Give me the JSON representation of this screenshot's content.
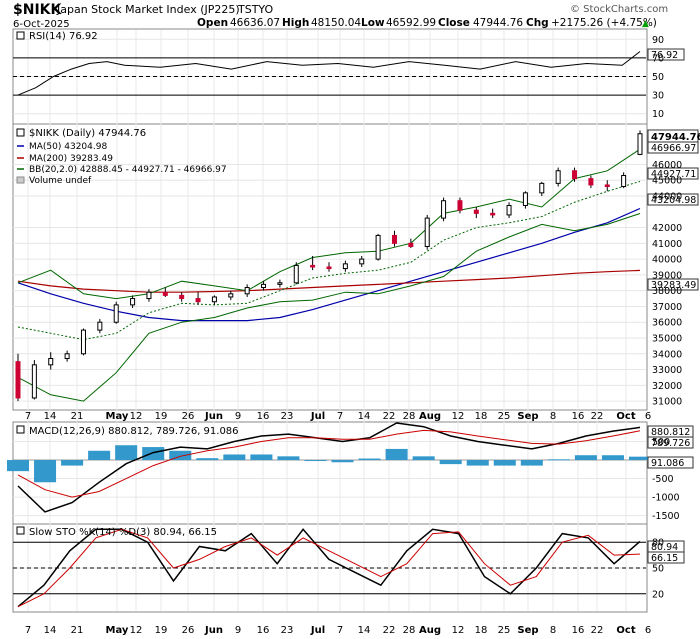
{
  "header": {
    "symbol": "$NIKK",
    "name": "Japan Stock Market Index (JP225)",
    "exchange": "TSTYO",
    "date": "6-Oct-2025",
    "open_label": "Open",
    "open": "46636.07",
    "high_label": "High",
    "high": "48150.04",
    "low_label": "Low",
    "low": "46592.99",
    "close_label": "Close",
    "close": "47944.76",
    "chg_label": "Chg",
    "chg": "+2175.26 (+4.75%)",
    "chg_arrow": "▲",
    "watermark": "© StockCharts.com"
  },
  "rsi_panel": {
    "legend": "RSI(14) 76.92",
    "ticks": [
      "90",
      "70",
      "50",
      "30",
      "10"
    ],
    "last_value": "76.92"
  },
  "price_panel": {
    "legend": [
      {
        "text": "$NIKK (Daily) 47944.76",
        "color": "#000000"
      },
      {
        "text": "MA(50) 43204.98",
        "color": "#0000aa"
      },
      {
        "text": "MA(200) 39283.49",
        "color": "#aa0000"
      },
      {
        "text": "BB(20,2.0) 42888.45 - 44927.71 - 46966.97",
        "color": "#006600"
      },
      {
        "text": "Volume undef",
        "color": "#555555"
      }
    ],
    "ticks": [
      "46000",
      "45000",
      "44000",
      "42000",
      "41000",
      "40000",
      "39000",
      "38000",
      "37000",
      "36000",
      "35000",
      "34000",
      "33000",
      "32000",
      "31000"
    ],
    "labels": [
      {
        "text": "47944.76",
        "bold": true
      },
      {
        "text": "46966.97",
        "bold": false
      },
      {
        "text": "44927.71",
        "bold": false
      },
      {
        "text": "43204.98",
        "bold": false
      },
      {
        "text": "39283.49",
        "bold": false
      }
    ]
  },
  "macd_panel": {
    "legend": "MACD(12,26,9) 880.812, 789.726, 91.086",
    "ticks": [
      "500",
      "-500",
      "-1000",
      "-1500"
    ],
    "labels": [
      "880.812",
      "789.726",
      "91.086"
    ]
  },
  "sto_panel": {
    "legend": "Slow STO %K(14) %D(3) 80.94, 66.15",
    "ticks": [
      "80",
      "50",
      "20"
    ],
    "labels": [
      "80.94",
      "66.15"
    ]
  },
  "x_axis": {
    "labels": [
      "7",
      "14",
      "21",
      "May",
      "12",
      "19",
      "26",
      "Jun",
      "9",
      "16",
      "23",
      "Jul",
      "7",
      "14",
      "22",
      "28",
      "Aug",
      "12",
      "18",
      "25",
      "Sep",
      "8",
      "16",
      "22",
      "Oct",
      "6"
    ],
    "bold": [
      "May",
      "Jun",
      "Jul",
      "Aug",
      "Sep",
      "Oct"
    ]
  },
  "chart_data": [
    {
      "type": "line",
      "title": "RSI(14)",
      "ylim": [
        0,
        100
      ],
      "x": [
        0,
        5,
        10,
        15,
        20,
        25,
        30,
        40,
        50,
        60,
        70,
        80,
        90,
        100,
        110,
        120,
        130,
        140,
        150,
        160,
        170,
        175
      ],
      "series": [
        {
          "name": "RSI(14)",
          "values": [
            30,
            38,
            50,
            58,
            64,
            66,
            62,
            60,
            64,
            58,
            66,
            62,
            64,
            60,
            66,
            62,
            58,
            66,
            60,
            64,
            62,
            76.92
          ]
        }
      ],
      "reference_lines": [
        70,
        50,
        30
      ]
    },
    {
      "type": "line",
      "title": "$NIKK (Daily)",
      "ylim": [
        30500,
        48500
      ],
      "x_labels": [
        "7",
        "14",
        "21",
        "May",
        "12",
        "19",
        "26",
        "Jun",
        "9",
        "16",
        "23",
        "Jul",
        "7",
        "14",
        "22",
        "28",
        "Aug",
        "12",
        "18",
        "25",
        "Sep",
        "8",
        "16",
        "22",
        "Oct",
        "6"
      ],
      "series": [
        {
          "name": "$NIKK (Daily)",
          "type": "candlestick",
          "values": [
            [
              33500,
              34000,
              31000,
              31200
            ],
            [
              31200,
              33600,
              31100,
              33300
            ],
            [
              33300,
              34100,
              33000,
              33700
            ],
            [
              33700,
              34200,
              33500,
              34000
            ],
            [
              34000,
              35600,
              33900,
              35500
            ],
            [
              35500,
              36200,
              35300,
              36000
            ],
            [
              36000,
              37300,
              35900,
              37100
            ],
            [
              37100,
              37700,
              36900,
              37500
            ],
            [
              37500,
              38100,
              37300,
              37900
            ],
            [
              37900,
              38200,
              37600,
              37700
            ],
            [
              37700,
              37900,
              37300,
              37500
            ],
            [
              37500,
              37900,
              37100,
              37300
            ],
            [
              37300,
              37700,
              37100,
              37600
            ],
            [
              37600,
              38000,
              37400,
              37800
            ],
            [
              37800,
              38400,
              37600,
              38200
            ],
            [
              38200,
              38600,
              38000,
              38400
            ],
            [
              38400,
              38700,
              38200,
              38500
            ],
            [
              38500,
              39800,
              38400,
              39600
            ],
            [
              39600,
              40200,
              39300,
              39500
            ],
            [
              39500,
              39800,
              39200,
              39400
            ],
            [
              39400,
              39900,
              39200,
              39700
            ],
            [
              39700,
              40200,
              39500,
              40000
            ],
            [
              40000,
              41600,
              39900,
              41500
            ],
            [
              41500,
              41800,
              40800,
              41000
            ],
            [
              41000,
              41300,
              40700,
              40800
            ],
            [
              40800,
              42800,
              40600,
              42600
            ],
            [
              42600,
              43900,
              42400,
              43700
            ],
            [
              43700,
              43900,
              42900,
              43100
            ],
            [
              43100,
              43300,
              42600,
              42900
            ],
            [
              42900,
              43200,
              42600,
              42800
            ],
            [
              42800,
              43600,
              42600,
              43400
            ],
            [
              43400,
              44300,
              43200,
              44200
            ],
            [
              44200,
              44900,
              44000,
              44800
            ],
            [
              44800,
              45800,
              44600,
              45600
            ],
            [
              45600,
              45800,
              44900,
              45100
            ],
            [
              45100,
              45300,
              44500,
              44700
            ],
            [
              44700,
              45000,
              44300,
              44600
            ],
            [
              44600,
              45500,
              44500,
              45300
            ],
            [
              46636.07,
              48150.04,
              46592.99,
              47944.76
            ]
          ]
        },
        {
          "name": "MA(50)",
          "values": [
            38500,
            37800,
            37200,
            36700,
            36300,
            36100,
            36100,
            36100,
            36300,
            36800,
            37400,
            38000,
            38600,
            39200,
            39800,
            40400,
            41000,
            41700,
            42300,
            43204.98
          ]
        },
        {
          "name": "MA(200)",
          "values": [
            38600,
            38300,
            38100,
            38000,
            37900,
            37900,
            37950,
            38000,
            38100,
            38200,
            38300,
            38400,
            38500,
            38600,
            38700,
            38800,
            38950,
            39100,
            39200,
            39283.49
          ]
        },
        {
          "name": "BB Upper",
          "values": [
            38500,
            39300,
            37800,
            37500,
            37800,
            38600,
            38300,
            38000,
            39200,
            40100,
            40400,
            40500,
            41000,
            42900,
            43300,
            43800,
            43300,
            45100,
            45600,
            46966.97
          ]
        },
        {
          "name": "BB Middle",
          "values": [
            35700,
            35300,
            34900,
            35300,
            36600,
            37200,
            37100,
            37200,
            38000,
            38800,
            39100,
            39300,
            39800,
            41200,
            42000,
            42300,
            42700,
            43600,
            44300,
            44927.71
          ]
        },
        {
          "name": "BB Lower",
          "values": [
            32500,
            31400,
            31000,
            32800,
            35300,
            36000,
            36300,
            36900,
            37300,
            37400,
            37900,
            37800,
            38300,
            38900,
            40500,
            41400,
            42200,
            41800,
            42200,
            42888.45
          ]
        }
      ]
    },
    {
      "type": "line",
      "title": "MACD(12,26,9)",
      "ylim": [
        -1700,
        1000
      ],
      "series": [
        {
          "name": "MACD",
          "values": [
            -700,
            -1400,
            -1150,
            -600,
            -100,
            200,
            350,
            300,
            500,
            650,
            700,
            600,
            500,
            600,
            1000,
            900,
            650,
            500,
            400,
            300,
            450,
            650,
            780,
            880.812
          ]
        },
        {
          "name": "Signal",
          "values": [
            -400,
            -800,
            -1000,
            -850,
            -500,
            -150,
            100,
            250,
            350,
            500,
            600,
            600,
            560,
            560,
            700,
            800,
            760,
            650,
            550,
            450,
            430,
            520,
            650,
            789.726
          ]
        },
        {
          "name": "Histogram",
          "type": "bar",
          "values": [
            -300,
            -600,
            -150,
            250,
            400,
            350,
            250,
            50,
            150,
            150,
            100,
            0,
            -60,
            40,
            300,
            100,
            -110,
            -150,
            -150,
            -150,
            20,
            130,
            130,
            91.086
          ]
        }
      ]
    },
    {
      "type": "line",
      "title": "Slow STO %K(14) %D(3)",
      "ylim": [
        0,
        100
      ],
      "series": [
        {
          "name": "%K",
          "values": [
            5,
            30,
            70,
            95,
            95,
            80,
            35,
            75,
            70,
            90,
            55,
            95,
            60,
            45,
            30,
            70,
            95,
            90,
            40,
            20,
            50,
            90,
            85,
            55,
            80.94
          ]
        },
        {
          "name": "%D",
          "values": [
            5,
            20,
            50,
            85,
            95,
            85,
            50,
            60,
            75,
            85,
            65,
            85,
            70,
            55,
            40,
            55,
            90,
            92,
            55,
            30,
            40,
            80,
            88,
            65,
            66.15
          ]
        }
      ],
      "reference_lines": [
        80,
        50,
        20
      ]
    }
  ]
}
